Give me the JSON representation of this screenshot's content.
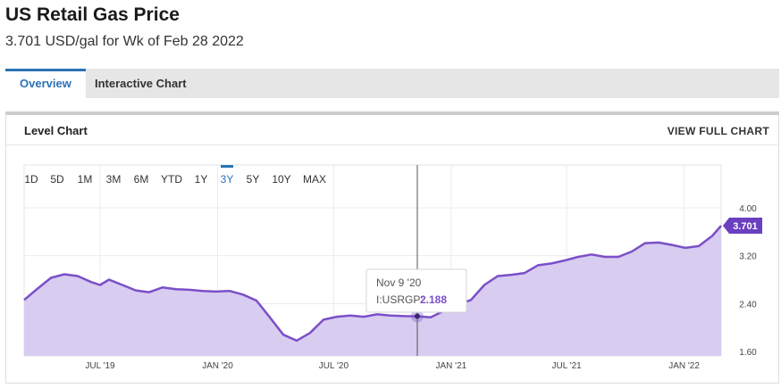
{
  "header": {
    "title": "US Retail Gas Price",
    "subtitle": "3.701 USD/gal for Wk of Feb 28 2022"
  },
  "tabs": [
    {
      "label": "Overview",
      "active": true
    },
    {
      "label": "Interactive Chart",
      "active": false
    }
  ],
  "panel": {
    "title": "Level Chart",
    "view_full_label": "VIEW FULL CHART"
  },
  "ranges": [
    "1D",
    "5D",
    "1M",
    "3M",
    "6M",
    "YTD",
    "1Y",
    "3Y",
    "5Y",
    "10Y",
    "MAX"
  ],
  "active_range": "3Y",
  "colors": {
    "accent": "#2a72b5",
    "line": "#7b4fc8",
    "fill": "#d8ccf0",
    "badge": "#6a3fc0"
  },
  "tooltip": {
    "date": "Nov 9 '20",
    "series_label": "I:USRGP:",
    "value": "2.188"
  },
  "last_value_label": "3.701",
  "chart_data": {
    "type": "area",
    "title": "",
    "xlabel": "",
    "ylabel": "",
    "x_ticks": [
      "JUL '19",
      "JAN '20",
      "JUL '20",
      "JAN '21",
      "JUL '21",
      "JAN '22"
    ],
    "y_ticks": [
      "4.00",
      "3.20",
      "2.40",
      "1.60"
    ],
    "ylim": [
      1.6,
      4.0
    ],
    "grid": true,
    "series": [
      {
        "values": [
          {
            "date": "2019-03-04",
            "value": 2.46
          },
          {
            "date": "2019-03-25",
            "value": 2.65
          },
          {
            "date": "2019-04-15",
            "value": 2.83
          },
          {
            "date": "2019-05-06",
            "value": 2.89
          },
          {
            "date": "2019-05-27",
            "value": 2.86
          },
          {
            "date": "2019-06-17",
            "value": 2.76
          },
          {
            "date": "2019-07-01",
            "value": 2.71
          },
          {
            "date": "2019-07-15",
            "value": 2.8
          },
          {
            "date": "2019-08-05",
            "value": 2.71
          },
          {
            "date": "2019-08-26",
            "value": 2.62
          },
          {
            "date": "2019-09-16",
            "value": 2.59
          },
          {
            "date": "2019-10-07",
            "value": 2.67
          },
          {
            "date": "2019-10-28",
            "value": 2.64
          },
          {
            "date": "2019-11-18",
            "value": 2.63
          },
          {
            "date": "2019-12-09",
            "value": 2.61
          },
          {
            "date": "2019-12-30",
            "value": 2.6
          },
          {
            "date": "2020-01-20",
            "value": 2.61
          },
          {
            "date": "2020-02-10",
            "value": 2.55
          },
          {
            "date": "2020-03-02",
            "value": 2.45
          },
          {
            "date": "2020-03-23",
            "value": 2.17
          },
          {
            "date": "2020-04-13",
            "value": 1.88
          },
          {
            "date": "2020-05-04",
            "value": 1.78
          },
          {
            "date": "2020-05-25",
            "value": 1.91
          },
          {
            "date": "2020-06-15",
            "value": 2.13
          },
          {
            "date": "2020-07-06",
            "value": 2.18
          },
          {
            "date": "2020-07-27",
            "value": 2.2
          },
          {
            "date": "2020-08-17",
            "value": 2.18
          },
          {
            "date": "2020-09-07",
            "value": 2.22
          },
          {
            "date": "2020-09-28",
            "value": 2.2
          },
          {
            "date": "2020-10-19",
            "value": 2.19
          },
          {
            "date": "2020-11-09",
            "value": 2.188
          },
          {
            "date": "2020-11-30",
            "value": 2.17
          },
          {
            "date": "2020-12-21",
            "value": 2.28
          },
          {
            "date": "2021-01-11",
            "value": 2.38
          },
          {
            "date": "2021-02-01",
            "value": 2.46
          },
          {
            "date": "2021-02-22",
            "value": 2.71
          },
          {
            "date": "2021-03-15",
            "value": 2.86
          },
          {
            "date": "2021-04-05",
            "value": 2.88
          },
          {
            "date": "2021-04-26",
            "value": 2.91
          },
          {
            "date": "2021-05-17",
            "value": 3.04
          },
          {
            "date": "2021-06-07",
            "value": 3.07
          },
          {
            "date": "2021-06-28",
            "value": 3.12
          },
          {
            "date": "2021-07-19",
            "value": 3.18
          },
          {
            "date": "2021-08-09",
            "value": 3.22
          },
          {
            "date": "2021-08-30",
            "value": 3.18
          },
          {
            "date": "2021-09-20",
            "value": 3.18
          },
          {
            "date": "2021-10-11",
            "value": 3.27
          },
          {
            "date": "2021-11-01",
            "value": 3.41
          },
          {
            "date": "2021-11-22",
            "value": 3.42
          },
          {
            "date": "2021-12-13",
            "value": 3.38
          },
          {
            "date": "2022-01-03",
            "value": 3.33
          },
          {
            "date": "2022-01-24",
            "value": 3.36
          },
          {
            "date": "2022-02-14",
            "value": 3.53
          },
          {
            "date": "2022-02-28",
            "value": 3.701
          }
        ]
      }
    ]
  }
}
